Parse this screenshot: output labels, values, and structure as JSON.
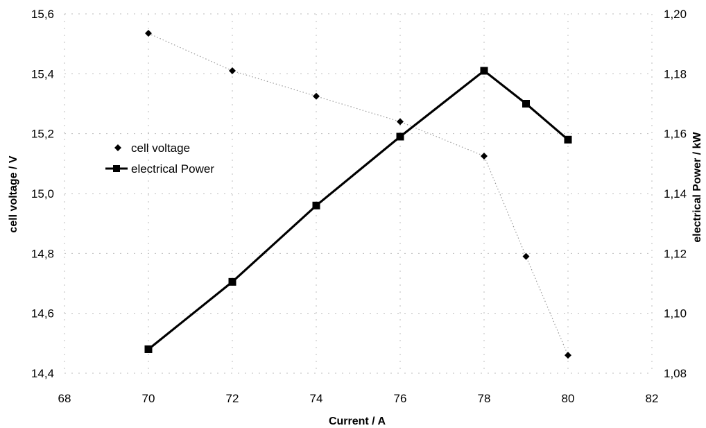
{
  "chart_data": {
    "type": "line",
    "xlabel": "Current / A",
    "ylabel": "cell voltage / V",
    "y2label": "electrical Power / kW",
    "xlim": [
      68,
      82
    ],
    "xticks": [
      "68",
      "70",
      "72",
      "74",
      "76",
      "78",
      "80",
      "82"
    ],
    "ylim": [
      14.4,
      15.6
    ],
    "yticks": [
      "14,4",
      "14,6",
      "14,8",
      "15,0",
      "15,2",
      "15,4",
      "15,6"
    ],
    "y2lim": [
      1.08,
      1.2
    ],
    "y2ticks": [
      "1,08",
      "1,10",
      "1,12",
      "1,14",
      "1,16",
      "1,18",
      "1,20"
    ],
    "grid": true,
    "legend_position": "upper-left",
    "series": [
      {
        "name": "cell voltage",
        "axis": "left",
        "marker": "diamond",
        "line": "dotted",
        "color": "#000000",
        "x": [
          70,
          72,
          74,
          76,
          78,
          79,
          80
        ],
        "y": [
          15.535,
          15.41,
          15.325,
          15.24,
          15.125,
          14.79,
          14.46
        ]
      },
      {
        "name": "electrical Power",
        "axis": "right",
        "marker": "square",
        "line": "solid",
        "color": "#000000",
        "x": [
          70,
          72,
          74,
          76,
          78,
          79,
          80
        ],
        "y": [
          1.088,
          1.1105,
          1.136,
          1.159,
          1.181,
          1.17,
          1.158
        ]
      }
    ]
  }
}
